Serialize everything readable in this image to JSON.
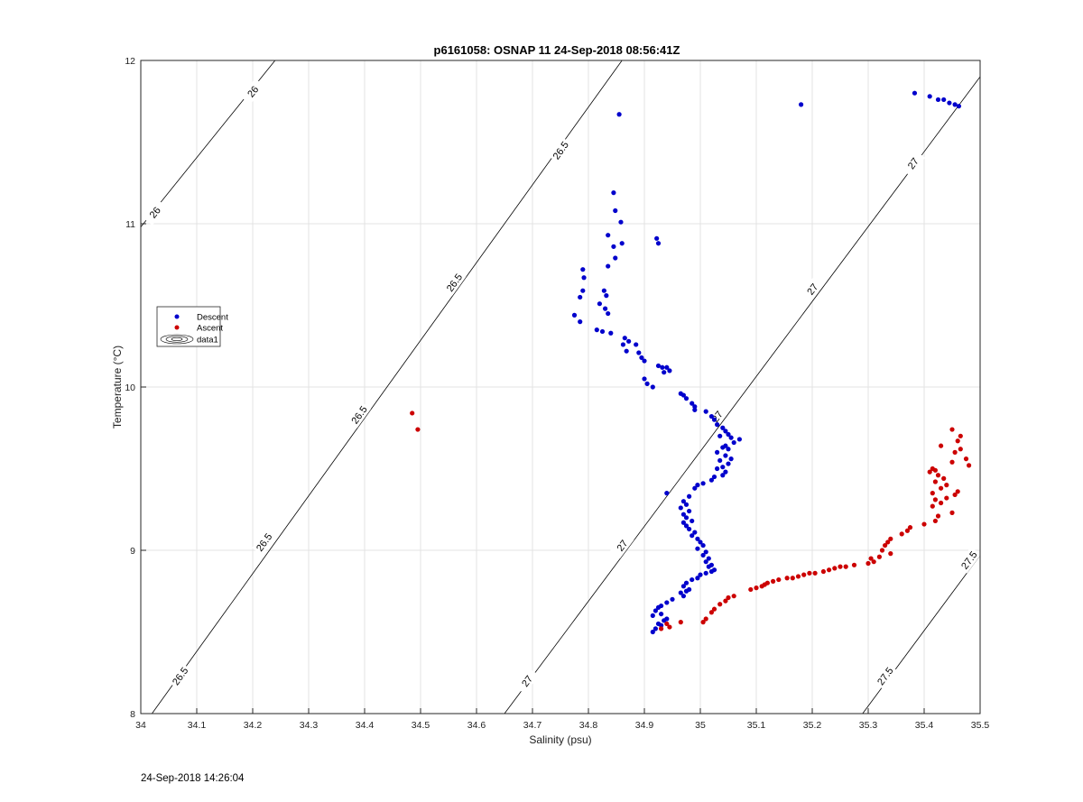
{
  "colors": {
    "descent": "#0000cc",
    "ascent": "#cc0000",
    "grid": "#e3e3e3",
    "axis": "#262626",
    "contour": "#000000"
  },
  "timestamp": "24-Sep-2018 14:26:04",
  "chart_data": {
    "type": "scatter",
    "title": "p6161058: OSNAP 11 24-Sep-2018 08:56:41Z",
    "xlabel": "Salinity (psu)",
    "ylabel": "Temperature (°C)",
    "xlim": [
      34,
      35.5
    ],
    "ylim": [
      8,
      12
    ],
    "grid": true,
    "legend_placement": "left",
    "xticks": [
      "34",
      "34.1",
      "34.2",
      "34.3",
      "34.4",
      "34.5",
      "34.6",
      "34.7",
      "34.8",
      "34.9",
      "35",
      "35.1",
      "35.2",
      "35.3",
      "35.4",
      "35.5"
    ],
    "yticks": [
      "8",
      "9",
      "10",
      "11",
      "12"
    ],
    "legend": [
      "Descent",
      "Ascent",
      "data1"
    ],
    "density_contours": [
      {
        "label": "26",
        "points": [
          [
            34.0,
            10.98
          ],
          [
            34.24,
            12.0
          ]
        ],
        "labels_at": [
          [
            34.025,
            11.07
          ],
          [
            34.2,
            11.81
          ]
        ]
      },
      {
        "label": "26.5",
        "points": [
          [
            34.02,
            8.0
          ],
          [
            34.86,
            12.0
          ]
        ],
        "labels_at": [
          [
            34.07,
            8.23
          ],
          [
            34.22,
            9.05
          ],
          [
            34.39,
            9.83
          ],
          [
            34.56,
            10.64
          ],
          [
            34.75,
            11.45
          ]
        ]
      },
      {
        "label": "27",
        "points": [
          [
            34.65,
            8.0
          ],
          [
            35.5,
            11.9
          ]
        ],
        "labels_at": [
          [
            34.69,
            8.2
          ],
          [
            34.86,
            9.03
          ],
          [
            35.03,
            9.82
          ],
          [
            35.2,
            10.6
          ],
          [
            35.38,
            11.37
          ]
        ]
      },
      {
        "label": "27.5",
        "points": [
          [
            35.29,
            8.0
          ],
          [
            35.5,
            8.97
          ]
        ],
        "labels_at": [
          [
            35.33,
            8.23
          ],
          [
            35.48,
            8.94
          ]
        ]
      }
    ],
    "series": [
      {
        "name": "Descent",
        "points": [
          [
            34.855,
            11.67
          ],
          [
            35.18,
            11.73
          ],
          [
            35.383,
            11.8
          ],
          [
            35.41,
            11.78
          ],
          [
            35.425,
            11.76
          ],
          [
            35.435,
            11.76
          ],
          [
            35.445,
            11.74
          ],
          [
            35.455,
            11.73
          ],
          [
            35.462,
            11.72
          ],
          [
            34.845,
            11.19
          ],
          [
            34.848,
            11.08
          ],
          [
            34.858,
            11.01
          ],
          [
            34.835,
            10.93
          ],
          [
            34.845,
            10.86
          ],
          [
            34.86,
            10.88
          ],
          [
            34.922,
            10.91
          ],
          [
            34.925,
            10.88
          ],
          [
            34.848,
            10.79
          ],
          [
            34.835,
            10.74
          ],
          [
            34.79,
            10.72
          ],
          [
            34.792,
            10.67
          ],
          [
            34.79,
            10.59
          ],
          [
            34.785,
            10.55
          ],
          [
            34.828,
            10.59
          ],
          [
            34.832,
            10.56
          ],
          [
            34.82,
            10.51
          ],
          [
            34.83,
            10.48
          ],
          [
            34.835,
            10.45
          ],
          [
            34.775,
            10.44
          ],
          [
            34.785,
            10.4
          ],
          [
            34.815,
            10.35
          ],
          [
            34.825,
            10.34
          ],
          [
            34.84,
            10.33
          ],
          [
            34.865,
            10.3
          ],
          [
            34.872,
            10.28
          ],
          [
            34.862,
            10.26
          ],
          [
            34.868,
            10.22
          ],
          [
            34.885,
            10.26
          ],
          [
            34.89,
            10.21
          ],
          [
            34.895,
            10.18
          ],
          [
            34.9,
            10.16
          ],
          [
            34.925,
            10.13
          ],
          [
            34.932,
            10.12
          ],
          [
            34.94,
            10.12
          ],
          [
            34.945,
            10.1
          ],
          [
            34.935,
            10.09
          ],
          [
            34.9,
            10.05
          ],
          [
            34.905,
            10.02
          ],
          [
            34.915,
            10.0
          ],
          [
            34.965,
            9.96
          ],
          [
            34.97,
            9.95
          ],
          [
            34.975,
            9.93
          ],
          [
            34.985,
            9.9
          ],
          [
            34.99,
            9.88
          ],
          [
            34.99,
            9.86
          ],
          [
            35.01,
            9.85
          ],
          [
            35.02,
            9.82
          ],
          [
            35.025,
            9.8
          ],
          [
            35.03,
            9.77
          ],
          [
            35.04,
            9.75
          ],
          [
            35.045,
            9.73
          ],
          [
            35.05,
            9.71
          ],
          [
            35.035,
            9.7
          ],
          [
            35.055,
            9.69
          ],
          [
            35.07,
            9.68
          ],
          [
            35.06,
            9.66
          ],
          [
            35.045,
            9.64
          ],
          [
            35.04,
            9.63
          ],
          [
            35.05,
            9.62
          ],
          [
            35.03,
            9.6
          ],
          [
            35.045,
            9.58
          ],
          [
            35.055,
            9.56
          ],
          [
            35.035,
            9.55
          ],
          [
            35.05,
            9.53
          ],
          [
            35.04,
            9.51
          ],
          [
            35.03,
            9.5
          ],
          [
            35.045,
            9.48
          ],
          [
            35.04,
            9.46
          ],
          [
            35.025,
            9.45
          ],
          [
            35.02,
            9.43
          ],
          [
            35.005,
            9.41
          ],
          [
            34.995,
            9.4
          ],
          [
            34.99,
            9.38
          ],
          [
            34.94,
            9.35
          ],
          [
            34.98,
            9.33
          ],
          [
            34.97,
            9.3
          ],
          [
            34.975,
            9.28
          ],
          [
            34.965,
            9.26
          ],
          [
            34.98,
            9.24
          ],
          [
            34.97,
            9.22
          ],
          [
            34.975,
            9.2
          ],
          [
            34.985,
            9.18
          ],
          [
            34.97,
            9.17
          ],
          [
            34.975,
            9.15
          ],
          [
            34.98,
            9.13
          ],
          [
            34.99,
            9.11
          ],
          [
            34.985,
            9.09
          ],
          [
            34.995,
            9.07
          ],
          [
            35.0,
            9.05
          ],
          [
            35.005,
            9.03
          ],
          [
            34.995,
            9.01
          ],
          [
            35.01,
            8.99
          ],
          [
            35.005,
            8.97
          ],
          [
            35.015,
            8.95
          ],
          [
            35.01,
            8.93
          ],
          [
            35.02,
            8.91
          ],
          [
            35.015,
            8.9
          ],
          [
            35.025,
            8.88
          ],
          [
            35.02,
            8.87
          ],
          [
            35.01,
            8.86
          ],
          [
            35.0,
            8.85
          ],
          [
            34.995,
            8.83
          ],
          [
            34.985,
            8.82
          ],
          [
            34.975,
            8.8
          ],
          [
            34.97,
            8.78
          ],
          [
            34.98,
            8.76
          ],
          [
            34.975,
            8.75
          ],
          [
            34.965,
            8.74
          ],
          [
            34.97,
            8.72
          ],
          [
            34.95,
            8.7
          ],
          [
            34.94,
            8.68
          ],
          [
            34.93,
            8.66
          ],
          [
            34.925,
            8.65
          ],
          [
            34.92,
            8.63
          ],
          [
            34.93,
            8.61
          ],
          [
            34.915,
            8.6
          ],
          [
            34.94,
            8.58
          ],
          [
            34.935,
            8.57
          ],
          [
            34.925,
            8.55
          ],
          [
            34.93,
            8.54
          ],
          [
            34.92,
            8.52
          ],
          [
            34.915,
            8.5
          ]
        ]
      },
      {
        "name": "Ascent",
        "points": [
          [
            34.485,
            9.84
          ],
          [
            34.495,
            9.74
          ],
          [
            35.45,
            9.74
          ],
          [
            35.465,
            9.7
          ],
          [
            35.46,
            9.67
          ],
          [
            35.43,
            9.64
          ],
          [
            35.465,
            9.62
          ],
          [
            35.455,
            9.6
          ],
          [
            35.475,
            9.56
          ],
          [
            35.45,
            9.54
          ],
          [
            35.48,
            9.52
          ],
          [
            35.415,
            9.5
          ],
          [
            35.42,
            9.49
          ],
          [
            35.41,
            9.48
          ],
          [
            35.425,
            9.46
          ],
          [
            35.435,
            9.44
          ],
          [
            35.42,
            9.42
          ],
          [
            35.44,
            9.4
          ],
          [
            35.43,
            9.38
          ],
          [
            35.46,
            9.36
          ],
          [
            35.415,
            9.35
          ],
          [
            35.455,
            9.34
          ],
          [
            35.44,
            9.32
          ],
          [
            35.42,
            9.31
          ],
          [
            35.43,
            9.29
          ],
          [
            35.415,
            9.27
          ],
          [
            35.45,
            9.23
          ],
          [
            35.425,
            9.21
          ],
          [
            35.42,
            9.18
          ],
          [
            35.4,
            9.16
          ],
          [
            35.375,
            9.14
          ],
          [
            35.37,
            9.12
          ],
          [
            35.36,
            9.1
          ],
          [
            35.34,
            9.07
          ],
          [
            35.335,
            9.05
          ],
          [
            35.33,
            9.03
          ],
          [
            35.325,
            9.0
          ],
          [
            35.34,
            8.98
          ],
          [
            35.32,
            8.96
          ],
          [
            35.305,
            8.95
          ],
          [
            35.31,
            8.93
          ],
          [
            35.3,
            8.92
          ],
          [
            35.275,
            8.91
          ],
          [
            35.26,
            8.9
          ],
          [
            35.25,
            8.9
          ],
          [
            35.24,
            8.89
          ],
          [
            35.23,
            8.88
          ],
          [
            35.22,
            8.87
          ],
          [
            35.205,
            8.86
          ],
          [
            35.195,
            8.86
          ],
          [
            35.185,
            8.85
          ],
          [
            35.175,
            8.84
          ],
          [
            35.165,
            8.83
          ],
          [
            35.155,
            8.83
          ],
          [
            35.14,
            8.82
          ],
          [
            35.13,
            8.81
          ],
          [
            35.12,
            8.8
          ],
          [
            35.115,
            8.79
          ],
          [
            35.11,
            8.78
          ],
          [
            35.1,
            8.77
          ],
          [
            35.09,
            8.76
          ],
          [
            35.06,
            8.72
          ],
          [
            35.05,
            8.71
          ],
          [
            35.045,
            8.69
          ],
          [
            35.035,
            8.67
          ],
          [
            35.025,
            8.64
          ],
          [
            35.02,
            8.62
          ],
          [
            35.01,
            8.58
          ],
          [
            35.005,
            8.56
          ],
          [
            34.965,
            8.56
          ],
          [
            34.94,
            8.55
          ],
          [
            34.945,
            8.53
          ],
          [
            34.93,
            8.52
          ]
        ]
      }
    ]
  }
}
